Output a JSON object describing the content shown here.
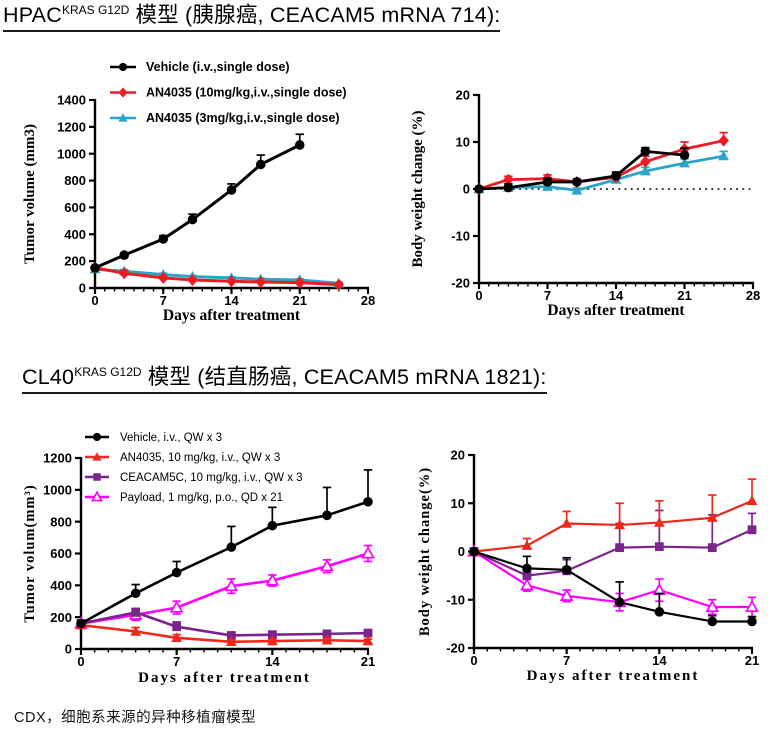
{
  "header1": {
    "prefix": "HPAC",
    "superscript": "KRAS G12D",
    "suffix": " 模型 (胰腺癌, CEACAM5 mRNA 714):"
  },
  "header2": {
    "prefix": "CL40",
    "superscript": "KRAS G12D",
    "suffix": " 模型 (结直肠癌, CEACAM5 mRNA 1821):"
  },
  "footer": {
    "text": "CDX，细胞系来源的异种移植瘤模型"
  },
  "colors": {
    "black": "#000000",
    "red_hpac": "#ED1C24",
    "teal": "#2BA4C6",
    "red_cl40": "#F0271B",
    "purple": "#7A248C",
    "magenta": "#FF00FF"
  },
  "chart_data": [
    {
      "id": "hpac-tumor-volume",
      "type": "line",
      "xlabel": "Days after treatment",
      "ylabel": "Tumor volume (mm3)",
      "xlim": [
        0,
        28
      ],
      "xticks": [
        0,
        7,
        14,
        21,
        28
      ],
      "x_minor_step": 1,
      "ylim": [
        0,
        1400
      ],
      "yticks": [
        0,
        200,
        400,
        600,
        800,
        1000,
        1200,
        1400
      ],
      "grid": false,
      "zero_line": false,
      "legend_position": "top-left-overlap",
      "series": [
        {
          "name": "Vehicle (i.v.,single dose)",
          "color": "#000000",
          "marker": "circle",
          "x": [
            0,
            3,
            7,
            10,
            14,
            17,
            21
          ],
          "y": [
            150,
            245,
            365,
            510,
            730,
            920,
            1065
          ],
          "err": [
            0,
            15,
            25,
            40,
            45,
            70,
            80
          ],
          "err_dir": "up"
        },
        {
          "name": "AN4035 (10mg/kg,i.v.,single dose)",
          "color": "#ED1C24",
          "marker": "diamond",
          "x": [
            0,
            3,
            7,
            10,
            14,
            17,
            21,
            25
          ],
          "y": [
            150,
            110,
            75,
            60,
            50,
            45,
            40,
            25
          ],
          "err": [
            10,
            15,
            12,
            10,
            8,
            8,
            8,
            12
          ],
          "err_dir": "up"
        },
        {
          "name": "AN4035 (3mg/kg,i.v.,single dose)",
          "color": "#2BA4C6",
          "marker": "triangle",
          "x": [
            0,
            3,
            7,
            10,
            14,
            17,
            21,
            25
          ],
          "y": [
            140,
            125,
            100,
            85,
            75,
            65,
            60,
            35
          ],
          "err": [
            8,
            12,
            10,
            8,
            8,
            8,
            8,
            8
          ],
          "err_dir": "up"
        }
      ]
    },
    {
      "id": "hpac-body-weight",
      "type": "line",
      "xlabel": "Days after treatment",
      "ylabel": "Body weight change (%)",
      "xlim": [
        0,
        28
      ],
      "xticks": [
        0,
        7,
        14,
        21,
        28
      ],
      "x_minor_step": 1,
      "ylim": [
        -20,
        20
      ],
      "yticks": [
        -20,
        -10,
        0,
        10,
        20
      ],
      "grid": false,
      "zero_line": true,
      "legend_position": "none",
      "series": [
        {
          "name": "Vehicle (i.v.,single dose)",
          "color": "#000000",
          "marker": "circle",
          "x": [
            0,
            3,
            7,
            10,
            14,
            17,
            21
          ],
          "y": [
            0,
            0.3,
            1.5,
            1.5,
            2.8,
            8,
            7.2
          ],
          "err": [
            0.3,
            0.8,
            0.8,
            0.6,
            0.8,
            0.8,
            1.5
          ],
          "err_dir": "up"
        },
        {
          "name": "AN4035 (10mg/kg,i.v.,single dose)",
          "color": "#ED1C24",
          "marker": "diamond",
          "x": [
            0,
            3,
            7,
            10,
            14,
            17,
            21,
            25
          ],
          "y": [
            0,
            2,
            2.2,
            1.5,
            2.5,
            5.8,
            8.5,
            10.3
          ],
          "err": [
            0.3,
            0.7,
            0.8,
            0.5,
            0.7,
            1.2,
            1.5,
            1.7
          ],
          "err_dir": "up"
        },
        {
          "name": "AN4035 (3mg/kg,i.v.,single dose)",
          "color": "#2BA4C6",
          "marker": "triangle",
          "x": [
            0,
            3,
            7,
            10,
            14,
            17,
            21,
            25
          ],
          "y": [
            0,
            0.3,
            0.5,
            -0.3,
            2,
            3.8,
            5.5,
            7
          ],
          "err": [
            0.3,
            0.5,
            0.5,
            0.5,
            0.5,
            0.8,
            0.9,
            1.0
          ],
          "err_dir": "up"
        }
      ]
    },
    {
      "id": "cl40-tumor-volume",
      "type": "line",
      "xlabel": "Days after treatment",
      "ylabel": "Tumor volum(mm³)",
      "xlim": [
        0,
        21
      ],
      "xticks": [
        0,
        7,
        14,
        21
      ],
      "x_minor_step": 1,
      "ylim": [
        0,
        1200
      ],
      "yticks": [
        0,
        200,
        400,
        600,
        800,
        1000,
        1200
      ],
      "grid": false,
      "zero_line": false,
      "legend_position": "top-left-overlap",
      "series": [
        {
          "name": "Vehicle, i.v., QW x 3",
          "color": "#000000",
          "marker": "circle",
          "x": [
            0,
            4,
            7,
            11,
            14,
            18,
            21
          ],
          "y": [
            160,
            350,
            480,
            640,
            775,
            840,
            925
          ],
          "err": [
            15,
            55,
            70,
            130,
            115,
            175,
            200
          ],
          "err_dir": "up"
        },
        {
          "name": "AN4035, 10 mg/kg, i.v., QW x 3",
          "color": "#F0271B",
          "marker": "triangle",
          "x": [
            0,
            4,
            7,
            11,
            14,
            18,
            21
          ],
          "y": [
            150,
            110,
            70,
            45,
            50,
            55,
            50
          ],
          "err": [
            10,
            25,
            20,
            10,
            10,
            12,
            12
          ],
          "err_dir": "up"
        },
        {
          "name": "CEACAM5C, 10 mg/kg, i.v., QW x 3",
          "color": "#7A248C",
          "marker": "square",
          "x": [
            0,
            4,
            7,
            11,
            14,
            18,
            21
          ],
          "y": [
            160,
            230,
            140,
            85,
            90,
            95,
            100
          ],
          "err": [
            12,
            25,
            30,
            15,
            15,
            15,
            20
          ],
          "err_dir": "up"
        },
        {
          "name": "Payload, 1 mg/kg, p.o., QD x 21",
          "color": "#FF00FF",
          "marker": "triangle-open",
          "x": [
            0,
            4,
            7,
            11,
            14,
            18,
            21
          ],
          "y": [
            160,
            215,
            260,
            395,
            430,
            520,
            600
          ],
          "err": [
            12,
            35,
            40,
            45,
            35,
            40,
            50
          ],
          "err_dir": "both"
        }
      ]
    },
    {
      "id": "cl40-body-weight",
      "type": "line",
      "xlabel": "Days after treatment",
      "ylabel": "Body weight change(%)",
      "xlim": [
        0,
        21
      ],
      "xticks": [
        0,
        7,
        14,
        21
      ],
      "x_minor_step": 1,
      "ylim": [
        -20,
        20
      ],
      "yticks": [
        -20,
        -10,
        0,
        10,
        20
      ],
      "grid": false,
      "zero_line": false,
      "legend_position": "none",
      "series": [
        {
          "name": "Vehicle, i.v., QW x 3",
          "color": "#000000",
          "marker": "circle",
          "x": [
            0,
            4,
            7,
            11,
            14,
            18,
            21
          ],
          "y": [
            0,
            -3.5,
            -3.8,
            -10.5,
            -12.5,
            -14.5,
            -14.5
          ],
          "err": [
            0.4,
            2.5,
            2.5,
            4.2,
            3.8,
            1.2,
            1.0
          ],
          "err_dir": "up"
        },
        {
          "name": "AN4035, 10 mg/kg, i.v., QW x 3",
          "color": "#F0271B",
          "marker": "triangle",
          "x": [
            0,
            4,
            7,
            11,
            14,
            18,
            21
          ],
          "y": [
            0,
            1.2,
            5.8,
            5.5,
            6,
            7,
            10.5
          ],
          "err": [
            0.4,
            1.5,
            2.5,
            4.5,
            4.5,
            4.7,
            4.5
          ],
          "err_dir": "up"
        },
        {
          "name": "CEACAM5C, 10 mg/kg, i.v., QW x 3",
          "color": "#7A248C",
          "marker": "square",
          "x": [
            0,
            4,
            7,
            11,
            14,
            18,
            21
          ],
          "y": [
            0,
            -5,
            -4,
            0.8,
            1,
            0.8,
            4.5
          ],
          "err": [
            0.4,
            1.5,
            2.3,
            5.0,
            7.5,
            6.8,
            3.4
          ],
          "err_dir": "up"
        },
        {
          "name": "Payload, 1 mg/kg, p.o., QD x 21",
          "color": "#FF00FF",
          "marker": "triangle-open",
          "x": [
            0,
            4,
            7,
            11,
            14,
            18,
            21
          ],
          "y": [
            0,
            -7,
            -9.2,
            -10.5,
            -8,
            -11.5,
            -11.5
          ],
          "err": [
            0.4,
            1.2,
            1.2,
            1.8,
            2.3,
            1.5,
            2.0
          ],
          "err_dir": "both"
        }
      ]
    }
  ]
}
